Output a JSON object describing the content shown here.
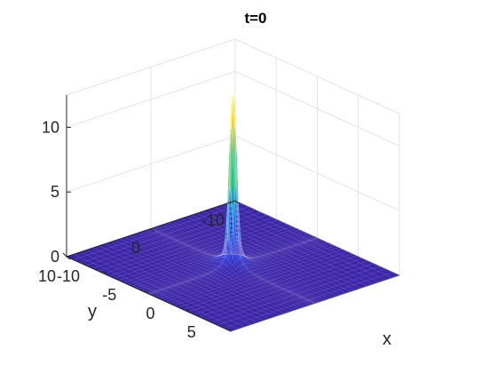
{
  "chart_data": {
    "type": "surface",
    "title": "t=0",
    "xlabel": "x",
    "ylabel": "y",
    "zlabel": "",
    "xlim": [
      -10,
      10
    ],
    "ylim": [
      -10,
      10
    ],
    "zlim": [
      0,
      12.5
    ],
    "x_ticks": [
      -10,
      -5,
      0,
      5
    ],
    "y_ticks": [
      -10,
      0,
      10
    ],
    "z_ticks": [
      0,
      5,
      10
    ],
    "x_tick_labels": [
      "-10",
      "-5",
      "0",
      "5"
    ],
    "y_tick_labels": [
      "-10",
      "0",
      "10"
    ],
    "z_tick_labels": [
      "0",
      "5",
      "10"
    ],
    "peak": {
      "x": 0,
      "y": 0,
      "z": 11.8
    },
    "grid": true,
    "colormap": "parula",
    "colors": {
      "low": "#3e26a8",
      "high": "#f9fb15"
    }
  }
}
